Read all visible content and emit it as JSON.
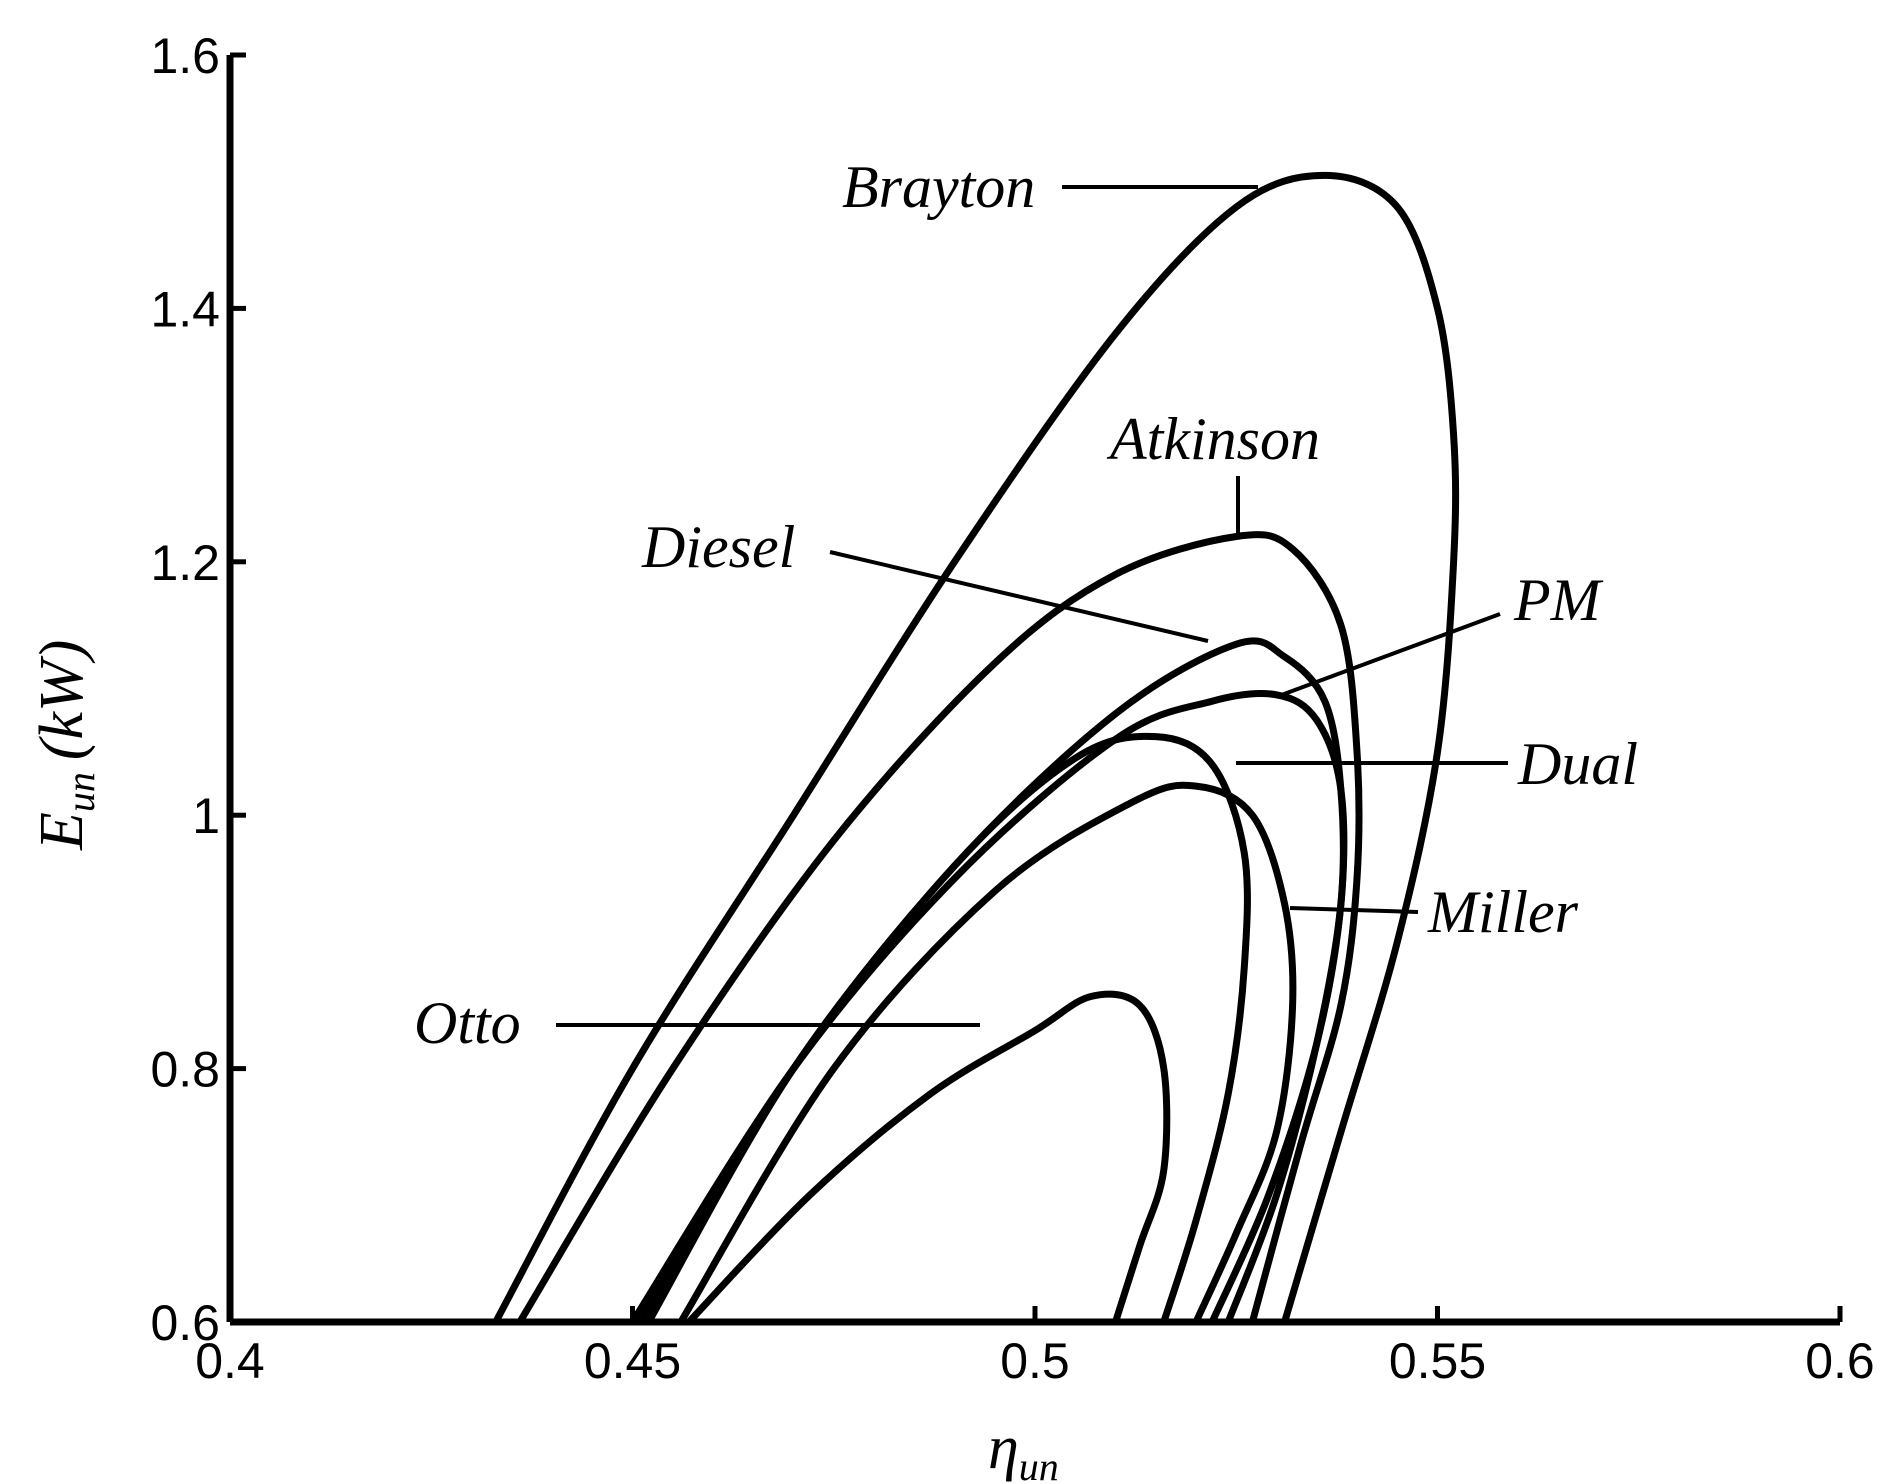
{
  "chart_data": {
    "type": "line",
    "title": "",
    "xlabel": {
      "main": "η",
      "sub": "un"
    },
    "ylabel": {
      "main": "E",
      "sub": "un",
      "unit": "(kW)"
    },
    "xlim": [
      0.4,
      0.6
    ],
    "ylim": [
      0.6,
      1.6
    ],
    "grid": false,
    "x_ticks": [
      {
        "value": 0.4,
        "label": "0.4"
      },
      {
        "value": 0.45,
        "label": "0.45"
      },
      {
        "value": 0.5,
        "label": "0.5"
      },
      {
        "value": 0.55,
        "label": "0.55"
      },
      {
        "value": 0.6,
        "label": "0.6"
      }
    ],
    "y_ticks": [
      {
        "value": 0.6,
        "label": "0.6"
      },
      {
        "value": 0.8,
        "label": "0.8"
      },
      {
        "value": 1.0,
        "label": "1"
      },
      {
        "value": 1.2,
        "label": "1.2"
      },
      {
        "value": 1.4,
        "label": "1.4"
      },
      {
        "value": 1.6,
        "label": "1.6"
      }
    ],
    "series": [
      {
        "name": "Brayton",
        "points": [
          [
            0.433,
            0.6
          ],
          [
            0.45,
            0.8
          ],
          [
            0.47,
            1.0
          ],
          [
            0.49,
            1.2
          ],
          [
            0.51,
            1.38
          ],
          [
            0.525,
            1.48
          ],
          [
            0.536,
            1.505
          ],
          [
            0.545,
            1.48
          ],
          [
            0.55,
            1.4
          ],
          [
            0.552,
            1.3
          ],
          [
            0.552,
            1.2
          ],
          [
            0.55,
            1.05
          ],
          [
            0.545,
            0.9
          ],
          [
            0.538,
            0.75
          ],
          [
            0.531,
            0.6
          ]
        ]
      },
      {
        "name": "Atkinson",
        "points": [
          [
            0.436,
            0.6
          ],
          [
            0.455,
            0.8
          ],
          [
            0.475,
            0.98
          ],
          [
            0.495,
            1.12
          ],
          [
            0.51,
            1.19
          ],
          [
            0.525,
            1.22
          ],
          [
            0.532,
            1.21
          ],
          [
            0.538,
            1.15
          ],
          [
            0.54,
            1.05
          ],
          [
            0.54,
            0.95
          ],
          [
            0.538,
            0.85
          ],
          [
            0.533,
            0.74
          ],
          [
            0.527,
            0.6
          ]
        ]
      },
      {
        "name": "Diesel",
        "points": [
          [
            0.451,
            0.6
          ],
          [
            0.47,
            0.8
          ],
          [
            0.49,
            0.96
          ],
          [
            0.51,
            1.08
          ],
          [
            0.525,
            1.135
          ],
          [
            0.531,
            1.125
          ],
          [
            0.536,
            1.09
          ],
          [
            0.538,
            1.02
          ],
          [
            0.538,
            0.93
          ],
          [
            0.535,
            0.82
          ],
          [
            0.529,
            0.7
          ],
          [
            0.522,
            0.6
          ]
        ]
      },
      {
        "name": "PM",
        "points": [
          [
            0.45,
            0.6
          ],
          [
            0.47,
            0.8
          ],
          [
            0.49,
            0.95
          ],
          [
            0.51,
            1.06
          ],
          [
            0.522,
            1.09
          ],
          [
            0.53,
            1.095
          ],
          [
            0.535,
            1.075
          ],
          [
            0.538,
            1.02
          ],
          [
            0.538,
            0.93
          ],
          [
            0.535,
            0.82
          ],
          [
            0.53,
            0.7
          ],
          [
            0.524,
            0.6
          ]
        ]
      },
      {
        "name": "Dual",
        "points": [
          [
            0.452,
            0.6
          ],
          [
            0.47,
            0.8
          ],
          [
            0.49,
            0.96
          ],
          [
            0.505,
            1.045
          ],
          [
            0.515,
            1.062
          ],
          [
            0.522,
            1.04
          ],
          [
            0.526,
            0.97
          ],
          [
            0.526,
            0.88
          ],
          [
            0.524,
            0.78
          ],
          [
            0.52,
            0.68
          ],
          [
            0.516,
            0.6
          ]
        ]
      },
      {
        "name": "Miller",
        "points": [
          [
            0.456,
            0.6
          ],
          [
            0.475,
            0.8
          ],
          [
            0.495,
            0.94
          ],
          [
            0.512,
            1.01
          ],
          [
            0.52,
            1.023
          ],
          [
            0.527,
            1.0
          ],
          [
            0.531,
            0.93
          ],
          [
            0.532,
            0.85
          ],
          [
            0.53,
            0.75
          ],
          [
            0.525,
            0.67
          ],
          [
            0.52,
            0.6
          ]
        ]
      },
      {
        "name": "Otto",
        "points": [
          [
            0.457,
            0.6
          ],
          [
            0.472,
            0.7
          ],
          [
            0.487,
            0.78
          ],
          [
            0.5,
            0.83
          ],
          [
            0.507,
            0.857
          ],
          [
            0.513,
            0.85
          ],
          [
            0.516,
            0.8
          ],
          [
            0.516,
            0.72
          ],
          [
            0.513,
            0.66
          ],
          [
            0.51,
            0.6
          ]
        ]
      }
    ],
    "annotations": [
      {
        "text": "Brayton"
      },
      {
        "text": "Atkinson"
      },
      {
        "text": "Diesel"
      },
      {
        "text": "PM"
      },
      {
        "text": "Dual"
      },
      {
        "text": "Miller"
      },
      {
        "text": "Otto"
      }
    ]
  }
}
